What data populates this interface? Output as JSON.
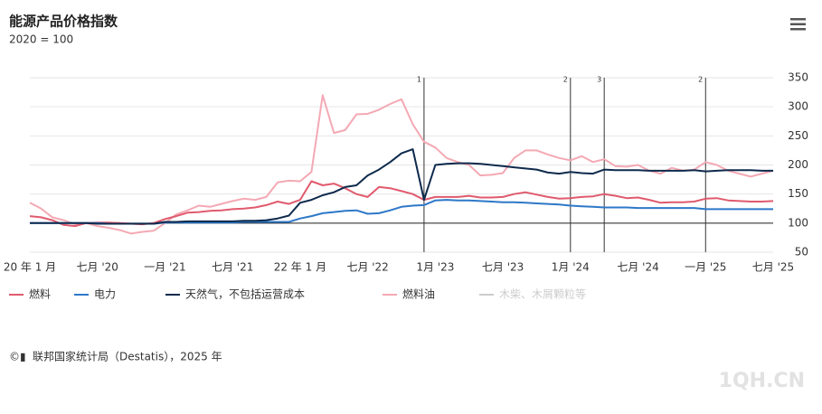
{
  "chart_data": {
    "type": "line",
    "title": "能源产品价格指数",
    "subtitle": "2020 = 100",
    "categories": [
      "20 年 1 月",
      null,
      null,
      null,
      null,
      null,
      "七月 '20",
      null,
      null,
      null,
      null,
      null,
      "一月 '21",
      null,
      null,
      null,
      null,
      null,
      "七月 '21",
      null,
      null,
      null,
      null,
      null,
      "22 年 1 月",
      null,
      null,
      null,
      null,
      null,
      "七月 '22",
      null,
      null,
      null,
      null,
      null,
      "1月 '23",
      null,
      null,
      null,
      null,
      null,
      "七月 '23",
      null,
      null,
      null,
      null,
      null,
      "1月 '24",
      null,
      null,
      null,
      null,
      null,
      "七月 '24",
      null,
      null,
      null,
      null,
      null,
      "一月 '25",
      null,
      null,
      null,
      null,
      null,
      "七月 '25"
    ],
    "series": [
      {
        "name": "燃料",
        "color": "#e05a6d",
        "visible": true,
        "values": [
          112,
          110,
          105,
          97,
          95,
          100,
          101,
          101,
          100,
          99,
          98,
          100,
          107,
          112,
          118,
          119,
          121,
          122,
          124,
          125,
          127,
          131,
          137,
          133,
          140,
          172,
          165,
          168,
          160,
          150,
          145,
          162,
          160,
          155,
          150,
          140,
          145,
          145,
          145,
          147,
          144,
          144,
          145,
          150,
          153,
          149,
          145,
          142,
          143,
          145,
          146,
          150,
          147,
          143,
          144,
          140,
          135,
          136,
          136,
          137,
          142,
          143,
          139,
          138,
          137,
          137,
          138
        ]
      },
      {
        "name": "电力",
        "color": "#2e78c8",
        "visible": true,
        "values": [
          100,
          100,
          100,
          100,
          100,
          100,
          100,
          99,
          99,
          99,
          99,
          99,
          101,
          101,
          101,
          101,
          101,
          101,
          101,
          102,
          102,
          102,
          102,
          102,
          108,
          112,
          117,
          119,
          121,
          122,
          116,
          117,
          122,
          128,
          130,
          131,
          139,
          140,
          139,
          139,
          138,
          137,
          136,
          136,
          135,
          134,
          133,
          132,
          130,
          129,
          128,
          127,
          127,
          127,
          126,
          126,
          126,
          126,
          126,
          126,
          124,
          124,
          124,
          124,
          124,
          124,
          124
        ]
      },
      {
        "name": "天然气，不包括运营成本",
        "color": "#0e2a4c",
        "visible": true,
        "values": [
          100,
          100,
          100,
          100,
          100,
          100,
          99,
          99,
          99,
          99,
          99,
          99,
          102,
          102,
          103,
          103,
          103,
          103,
          103,
          104,
          104,
          105,
          108,
          113,
          135,
          140,
          148,
          153,
          162,
          165,
          182,
          192,
          205,
          220,
          227,
          140,
          200,
          202,
          203,
          203,
          202,
          200,
          198,
          196,
          194,
          192,
          187,
          185,
          188,
          186,
          185,
          192,
          191,
          191,
          191,
          190,
          190,
          190,
          190,
          191,
          189,
          190,
          191,
          191,
          191,
          190,
          190
        ]
      },
      {
        "name": "燃料油",
        "color": "#f4a9b4",
        "visible": true,
        "values": [
          135,
          125,
          110,
          105,
          98,
          100,
          95,
          92,
          88,
          82,
          85,
          87,
          100,
          115,
          122,
          130,
          128,
          133,
          138,
          142,
          140,
          145,
          170,
          173,
          172,
          188,
          320,
          255,
          260,
          287,
          288,
          295,
          305,
          313,
          270,
          240,
          230,
          212,
          205,
          200,
          182,
          183,
          186,
          212,
          225,
          225,
          218,
          212,
          208,
          215,
          205,
          210,
          198,
          197,
          200,
          190,
          185,
          195,
          190,
          192,
          205,
          200,
          190,
          185,
          180,
          185,
          190
        ]
      },
      {
        "name": "木柴、木屑颗粒等",
        "color": "#cccccc",
        "visible": false
      }
    ],
    "ylim": [
      50,
      350
    ],
    "yticks": [
      50,
      100,
      150,
      200,
      250,
      300,
      350
    ],
    "grid": true,
    "baseline": 100,
    "annotations": [
      {
        "text": "1",
        "at": 35
      },
      {
        "text": "2",
        "at": 48
      },
      {
        "text": "3",
        "at": 51
      },
      {
        "text": "2",
        "at": 60
      }
    ],
    "source": "联邦国家统计局（Destatis），2025 年"
  },
  "watermark": "1QH.CN"
}
